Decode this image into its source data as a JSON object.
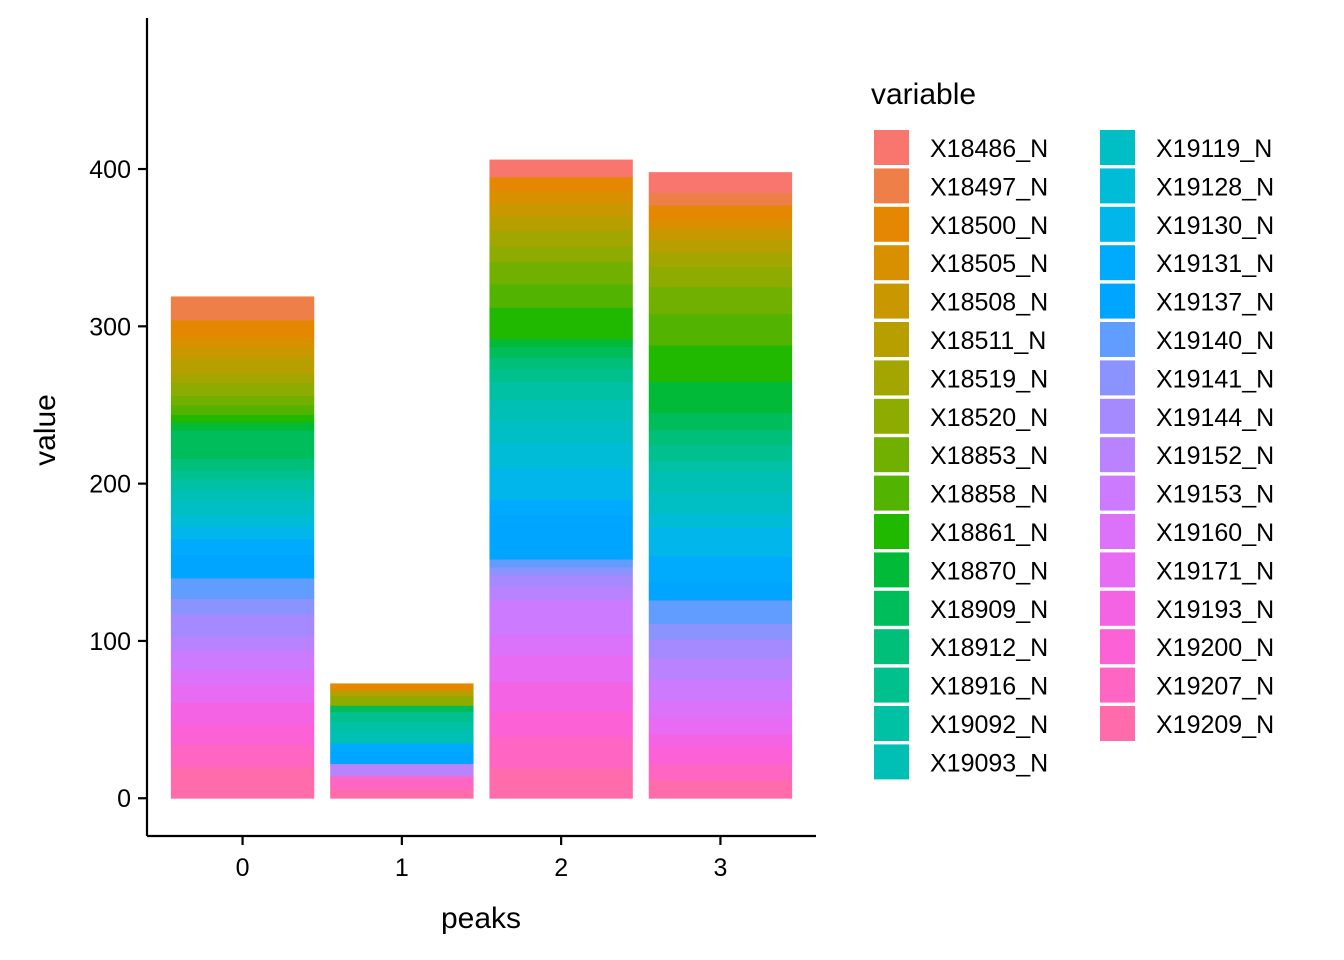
{
  "chart_data": {
    "type": "bar",
    "stacked": true,
    "xlabel": "peaks",
    "ylabel": "value",
    "categories": [
      "0",
      "1",
      "2",
      "3"
    ],
    "ylim": [
      -24,
      496
    ],
    "yticks": [
      0,
      100,
      200,
      300,
      400
    ],
    "grid": false,
    "legend": {
      "title": "variable",
      "position": "right",
      "columns": 2
    },
    "series": [
      {
        "name": "X18486_N",
        "color": "#F8766D",
        "values": [
          0,
          0,
          11,
          13
        ]
      },
      {
        "name": "X18497_N",
        "color": "#EF7F49",
        "values": [
          15,
          0,
          0,
          8
        ]
      },
      {
        "name": "X18500_N",
        "color": "#E58700",
        "values": [
          11,
          4,
          9,
          9
        ]
      },
      {
        "name": "X18505_N",
        "color": "#D89000",
        "values": [
          6,
          0,
          8,
          6
        ]
      },
      {
        "name": "X18508_N",
        "color": "#C99800",
        "values": [
          7,
          0,
          8,
          7
        ]
      },
      {
        "name": "X18511_N",
        "color": "#B79F00",
        "values": [
          10,
          4,
          9,
          8
        ]
      },
      {
        "name": "X18519_N",
        "color": "#A3A500",
        "values": [
          6,
          0,
          10,
          9
        ]
      },
      {
        "name": "X18520_N",
        "color": "#8DAB00",
        "values": [
          8,
          6,
          10,
          13
        ]
      },
      {
        "name": "X18853_N",
        "color": "#72B000",
        "values": [
          6,
          0,
          14,
          17
        ]
      },
      {
        "name": "X18858_N",
        "color": "#53B400",
        "values": [
          6,
          0,
          15,
          20
        ]
      },
      {
        "name": "X18861_N",
        "color": "#21B800",
        "values": [
          5,
          0,
          20,
          23
        ]
      },
      {
        "name": "X18870_N",
        "color": "#00BA38",
        "values": [
          5,
          0,
          5,
          20
        ]
      },
      {
        "name": "X18909_N",
        "color": "#00BD5C",
        "values": [
          18,
          4,
          7,
          11
        ]
      },
      {
        "name": "X18912_N",
        "color": "#00BF79",
        "values": [
          7,
          0,
          7,
          9
        ]
      },
      {
        "name": "X18916_N",
        "color": "#00C08E",
        "values": [
          6,
          6,
          8,
          10
        ]
      },
      {
        "name": "X19092_N",
        "color": "#00C1A3",
        "values": [
          7,
          6,
          12,
          7
        ]
      },
      {
        "name": "X19093_N",
        "color": "#00C0B5",
        "values": [
          7,
          8,
          13,
          14
        ]
      },
      {
        "name": "X19119_N",
        "color": "#00BFC4",
        "values": [
          9,
          0,
          14,
          13
        ]
      },
      {
        "name": "X19128_N",
        "color": "#00BCD6",
        "values": [
          7,
          0,
          16,
          9
        ]
      },
      {
        "name": "X19130_N",
        "color": "#00B6EB",
        "values": [
          8,
          0,
          20,
          18
        ]
      },
      {
        "name": "X19131_N",
        "color": "#00ABFD",
        "values": [
          10,
          5,
          10,
          16
        ]
      },
      {
        "name": "X19137_N",
        "color": "#00A5FF",
        "values": [
          15,
          8,
          28,
          12
        ]
      },
      {
        "name": "X19140_N",
        "color": "#619CFF",
        "values": [
          13,
          0,
          5,
          15
        ]
      },
      {
        "name": "X19141_N",
        "color": "#8B93FF",
        "values": [
          10,
          0,
          5,
          10
        ]
      },
      {
        "name": "X19144_N",
        "color": "#A58AFF",
        "values": [
          14,
          0,
          7,
          12
        ]
      },
      {
        "name": "X19152_N",
        "color": "#B983FF",
        "values": [
          9,
          8,
          9,
          13
        ]
      },
      {
        "name": "X19153_N",
        "color": "#CC7AFF",
        "values": [
          12,
          0,
          22,
          14
        ]
      },
      {
        "name": "X19160_N",
        "color": "#DC71FA",
        "values": [
          10,
          0,
          13,
          11
        ]
      },
      {
        "name": "X19171_N",
        "color": "#E86BF3",
        "values": [
          11,
          0,
          17,
          10
        ]
      },
      {
        "name": "X19193_N",
        "color": "#F463E4",
        "values": [
          14,
          0,
          19,
          8
        ]
      },
      {
        "name": "X19200_N",
        "color": "#FC61D5",
        "values": [
          13,
          0,
          16,
          11
        ]
      },
      {
        "name": "X19207_N",
        "color": "#FF65C2",
        "values": [
          14,
          8,
          20,
          10
        ]
      },
      {
        "name": "X19209_N",
        "color": "#FF6BAB",
        "values": [
          20,
          6,
          19,
          12
        ]
      }
    ]
  }
}
